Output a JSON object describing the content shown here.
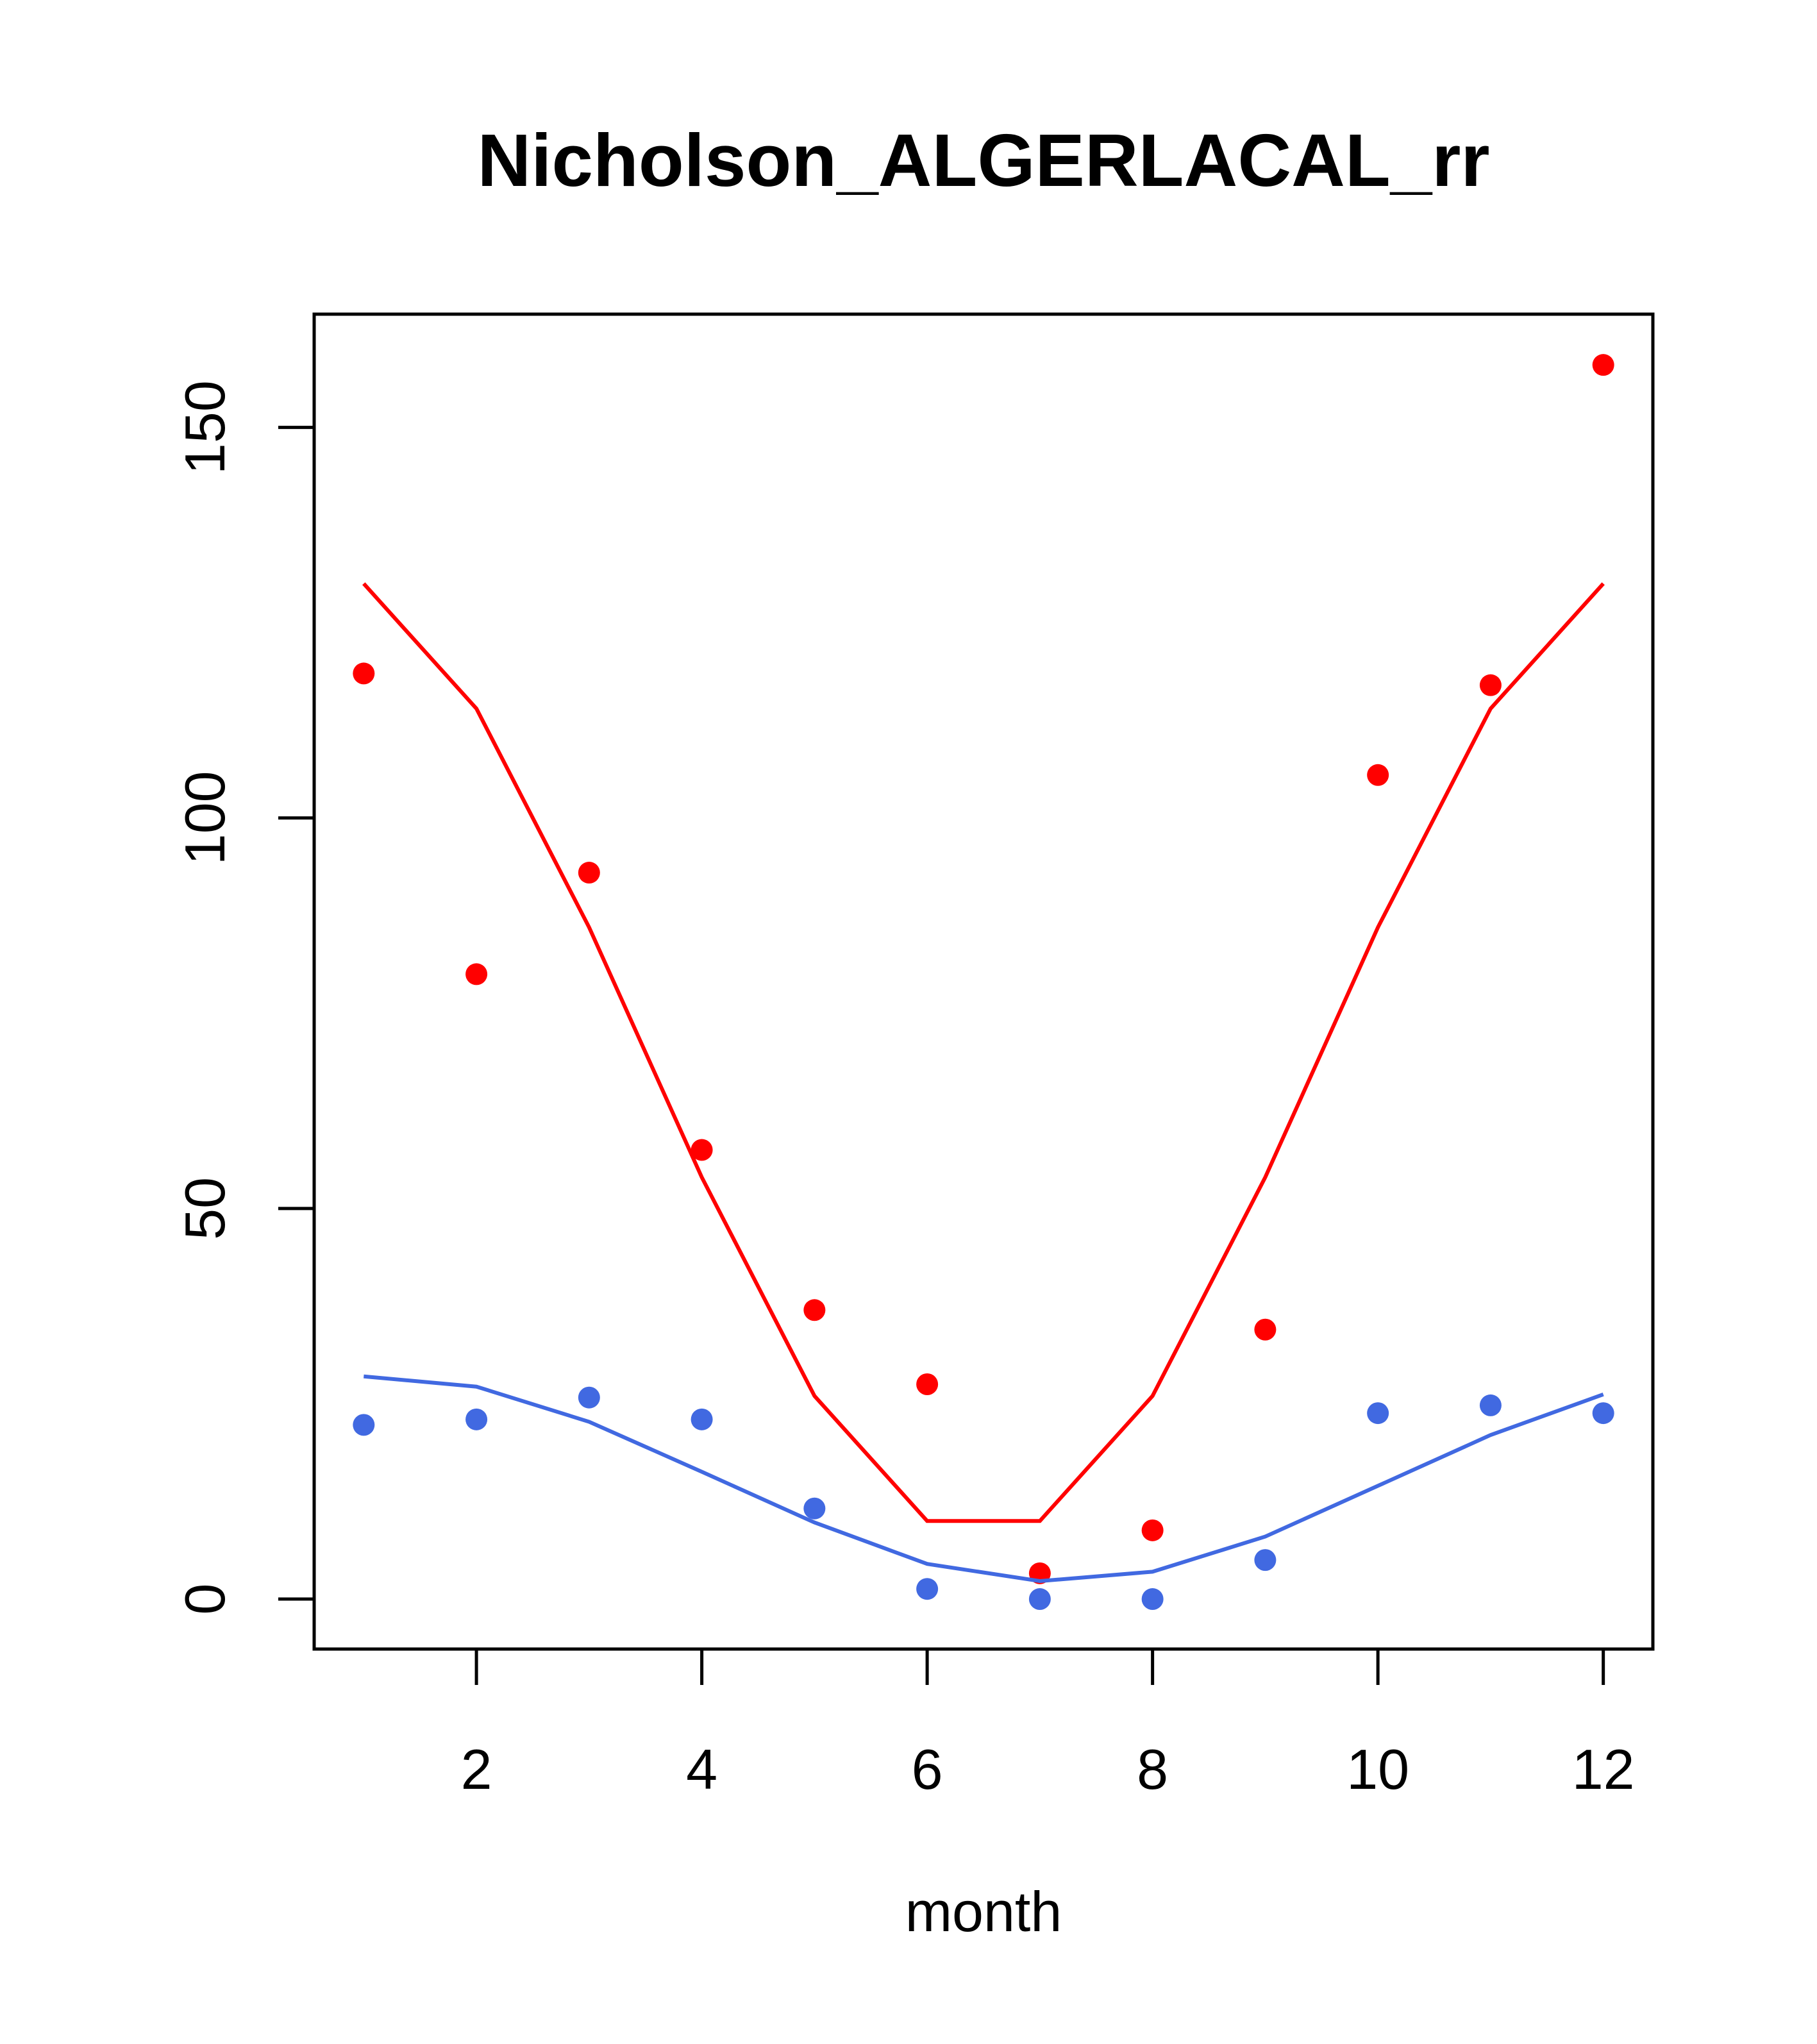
{
  "chart_data": {
    "type": "line",
    "title": "Nicholson_ALGERLACAL_rr",
    "xlabel": "month",
    "ylabel": "",
    "xlim": [
      0.56,
      12.44
    ],
    "ylim": [
      -6.4,
      164.5
    ],
    "x_ticks": [
      2,
      4,
      6,
      8,
      10,
      12
    ],
    "y_ticks": [
      0,
      50,
      100,
      150
    ],
    "x_tick_labels": [
      "2",
      "4",
      "6",
      "8",
      "10",
      "12"
    ],
    "y_tick_labels": [
      "0",
      "50",
      "100",
      "150"
    ],
    "grid": false,
    "legend": "none",
    "x": [
      1,
      2,
      3,
      4,
      5,
      6,
      7,
      8,
      9,
      10,
      11,
      12
    ],
    "series": [
      {
        "color": "#ff0000",
        "points": [
          118.5,
          80,
          93,
          57.5,
          37,
          27.5,
          3.3,
          8.8,
          34.5,
          105.5,
          117,
          158
        ],
        "line": [
          130,
          114,
          86,
          54,
          26,
          10,
          10,
          26,
          54,
          86,
          114,
          130
        ]
      },
      {
        "color": "#4169e1",
        "points": [
          22.3,
          23,
          25.8,
          23,
          11.6,
          1.3,
          0,
          0,
          5,
          23.8,
          24.8,
          23.8
        ],
        "line": [
          28.5,
          27.2,
          22.7,
          16.3,
          9.8,
          4.5,
          2.3,
          3.5,
          8,
          14.5,
          21,
          26.2
        ]
      }
    ]
  }
}
